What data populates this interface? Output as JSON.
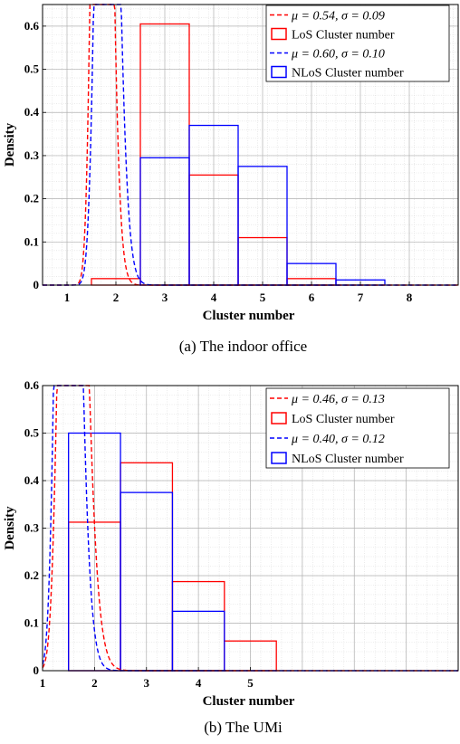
{
  "chart_data": [
    {
      "type": "bar",
      "subcaption": "(a) The indoor office",
      "xlabel": "Cluster number",
      "ylabel": "Density",
      "xlim": [
        0.5,
        9
      ],
      "ylim": [
        0,
        0.65
      ],
      "xticks": [
        1,
        2,
        3,
        4,
        5,
        6,
        7,
        8
      ],
      "yticks": [
        0,
        0.1,
        0.2,
        0.3,
        0.4,
        0.5,
        0.6
      ],
      "grid": true,
      "minor_grid": true,
      "legend_position": "top-right",
      "legend": [
        "μ = 0.54, σ = 0.09",
        "LoS Cluster number",
        "μ = 0.60, σ = 0.10",
        "NLoS Cluster number"
      ],
      "series": [
        {
          "kind": "histogram",
          "color": "#ff0000",
          "categories": [
            2,
            3,
            4,
            5,
            6
          ],
          "values": [
            0.015,
            0.605,
            0.255,
            0.11,
            0.015
          ]
        },
        {
          "kind": "histogram",
          "color": "#0000ff",
          "categories": [
            3,
            4,
            5,
            6,
            7
          ],
          "values": [
            0.295,
            0.37,
            0.275,
            0.05,
            0.012
          ]
        },
        {
          "kind": "lognormal-curve",
          "color": "#ff0000",
          "mu": 0.54,
          "sigma": 0.09
        },
        {
          "kind": "lognormal-curve",
          "color": "#0000ff",
          "mu": 0.6,
          "sigma": 0.1
        }
      ]
    },
    {
      "type": "bar",
      "subcaption": "(b) The UMi",
      "xlabel": "Cluster number",
      "ylabel": "Density",
      "xlim": [
        1,
        9
      ],
      "ylim": [
        0,
        0.6
      ],
      "xticks": [
        1,
        2,
        3,
        4,
        5
      ],
      "yticks": [
        0,
        0.1,
        0.2,
        0.3,
        0.4,
        0.5,
        0.6
      ],
      "grid": true,
      "minor_grid": true,
      "legend_position": "top-right",
      "legend": [
        "μ = 0.46, σ = 0.13",
        "LoS Cluster number",
        "μ = 0.40, σ = 0.12",
        "NLoS Cluster number"
      ],
      "series": [
        {
          "kind": "histogram",
          "color": "#ff0000",
          "categories": [
            2,
            3,
            4,
            5
          ],
          "values": [
            0.3125,
            0.4375,
            0.1875,
            0.0625
          ]
        },
        {
          "kind": "histogram",
          "color": "#0000ff",
          "categories": [
            2,
            3,
            4
          ],
          "values": [
            0.5,
            0.375,
            0.125
          ]
        },
        {
          "kind": "lognormal-curve",
          "color": "#ff0000",
          "mu": 0.46,
          "sigma": 0.13
        },
        {
          "kind": "lognormal-curve",
          "color": "#0000ff",
          "mu": 0.4,
          "sigma": 0.12
        }
      ]
    }
  ]
}
